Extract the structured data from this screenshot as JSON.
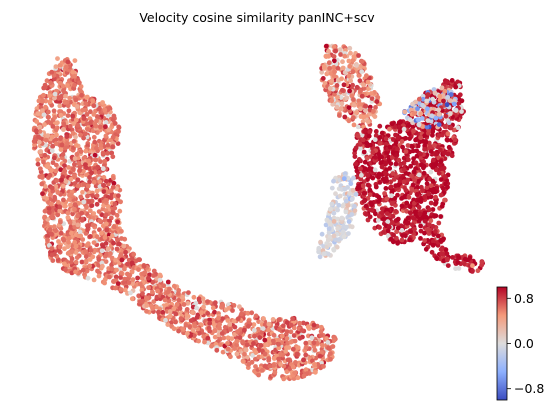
{
  "chart_data": {
    "type": "scatter",
    "title": "Velocity cosine similarity panINC+scv",
    "xlabel": "",
    "ylabel": "",
    "colormap": "coolwarm",
    "color_range": [
      -1,
      1
    ],
    "colorbar": {
      "ticks": [
        0.8,
        0.0,
        -0.8
      ],
      "tick_labels": [
        "0.8",
        "0.0",
        "−0.8"
      ],
      "placement": "bottom-right"
    },
    "grid": false,
    "axes_visible": false,
    "clusters": [
      {
        "region": "left-trajectory",
        "value_mean": 0.62,
        "value_spread": 0.12,
        "outline": [
          [
            58,
            56
          ],
          [
            75,
            60
          ],
          [
            84,
            96
          ],
          [
            94,
            97
          ],
          [
            112,
            108
          ],
          [
            121,
            130
          ],
          [
            118,
            150
          ],
          [
            110,
            168
          ],
          [
            120,
            190
          ],
          [
            122,
            230
          ],
          [
            132,
            250
          ],
          [
            150,
            268
          ],
          [
            182,
            290
          ],
          [
            210,
            300
          ],
          [
            238,
            305
          ],
          [
            262,
            318
          ],
          [
            296,
            318
          ],
          [
            316,
            322
          ],
          [
            336,
            338
          ],
          [
            332,
            358
          ],
          [
            318,
            372
          ],
          [
            292,
            380
          ],
          [
            262,
            378
          ],
          [
            236,
            360
          ],
          [
            206,
            346
          ],
          [
            176,
            330
          ],
          [
            150,
            314
          ],
          [
            126,
            296
          ],
          [
            100,
            282
          ],
          [
            72,
            274
          ],
          [
            52,
            262
          ],
          [
            44,
            236
          ],
          [
            44,
            208
          ],
          [
            40,
            180
          ],
          [
            34,
            150
          ],
          [
            34,
            120
          ],
          [
            40,
            96
          ],
          [
            48,
            76
          ]
        ]
      },
      {
        "region": "right-upper-arm",
        "value_mean": 0.55,
        "value_spread": 0.2,
        "outline": [
          [
            326,
            46
          ],
          [
            348,
            46
          ],
          [
            362,
            58
          ],
          [
            372,
            80
          ],
          [
            380,
            104
          ],
          [
            374,
            124
          ],
          [
            358,
            130
          ],
          [
            340,
            118
          ],
          [
            328,
            98
          ],
          [
            320,
            74
          ]
        ]
      },
      {
        "region": "right-main-body",
        "value_mean": 0.95,
        "value_spread": 0.12,
        "outline": [
          [
            358,
            132
          ],
          [
            386,
            124
          ],
          [
            408,
            118
          ],
          [
            425,
            92
          ],
          [
            448,
            78
          ],
          [
            460,
            82
          ],
          [
            464,
            112
          ],
          [
            456,
            140
          ],
          [
            450,
            170
          ],
          [
            446,
            200
          ],
          [
            440,
            226
          ],
          [
            448,
            254
          ],
          [
            470,
            256
          ],
          [
            484,
            262
          ],
          [
            480,
            272
          ],
          [
            454,
            270
          ],
          [
            432,
            256
          ],
          [
            418,
            240
          ],
          [
            396,
            244
          ],
          [
            372,
            230
          ],
          [
            358,
            200
          ],
          [
            356,
            168
          ],
          [
            352,
            148
          ]
        ]
      },
      {
        "region": "right-blue-patch",
        "value_mean": 0.05,
        "value_spread": 0.55,
        "outline": [
          [
            404,
            112
          ],
          [
            420,
            96
          ],
          [
            440,
            86
          ],
          [
            456,
            92
          ],
          [
            456,
            112
          ],
          [
            446,
            130
          ],
          [
            426,
            128
          ],
          [
            410,
            124
          ]
        ]
      },
      {
        "region": "right-lower-left-arm",
        "value_mean": -0.02,
        "value_spread": 0.15,
        "outline": [
          [
            334,
            176
          ],
          [
            352,
            170
          ],
          [
            358,
            200
          ],
          [
            354,
            226
          ],
          [
            340,
            246
          ],
          [
            324,
            262
          ],
          [
            316,
            256
          ],
          [
            322,
            234
          ],
          [
            330,
            210
          ],
          [
            332,
            190
          ]
        ]
      }
    ]
  }
}
